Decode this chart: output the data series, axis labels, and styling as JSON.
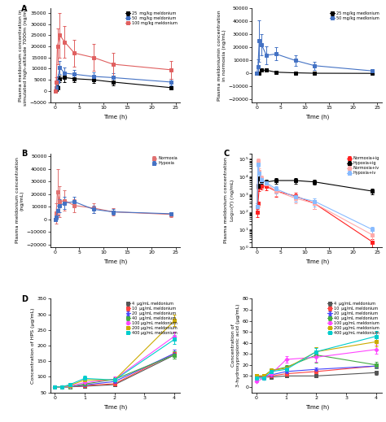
{
  "panel_A": {
    "ylabel": "Plasma meldonium concentration in\nsimulated high-altitude 7000m (ng/mL)",
    "xlabel": "Time (h)",
    "time": [
      0,
      0.25,
      0.5,
      1,
      2,
      4,
      8,
      12,
      24
    ],
    "series": [
      {
        "label": "25  mg/kg meldonium",
        "color": "black",
        "marker": "s",
        "y": [
          0,
          500,
          1500,
          5500,
          6000,
          5500,
          5000,
          4000,
          1500
        ],
        "yerr": [
          0,
          400,
          600,
          1500,
          2000,
          1500,
          1500,
          1500,
          800
        ]
      },
      {
        "label": "50  mg/kg meldonium",
        "color": "#4472C4",
        "marker": "s",
        "y": [
          0,
          1500,
          4500,
          10500,
          8000,
          7500,
          6500,
          6000,
          4000
        ],
        "yerr": [
          0,
          800,
          2000,
          3000,
          2500,
          2000,
          2000,
          2000,
          1500
        ]
      },
      {
        "label": "100 mg/kg meldonium",
        "color": "#E06060",
        "marker": "s",
        "y": [
          0,
          4000,
          20000,
          25000,
          22000,
          17000,
          15000,
          12000,
          9500
        ],
        "yerr": [
          0,
          2000,
          8000,
          10000,
          7000,
          6000,
          6000,
          5000,
          4000
        ]
      }
    ],
    "ylim": [
      -5000,
      37000
    ],
    "yticks": [
      -5000,
      0,
      5000,
      10000,
      15000,
      20000,
      25000,
      30000,
      35000
    ],
    "xlim": [
      -1,
      26
    ],
    "xticks": [
      0,
      5,
      10,
      15,
      20,
      25
    ]
  },
  "panel_A2": {
    "ylabel": "Plasma meldoniumin concentration\nin normoxia (ng/mL)",
    "xlabel": "Time (h)",
    "time": [
      0,
      0.25,
      0.5,
      1,
      2,
      4,
      8,
      12,
      24
    ],
    "series": [
      {
        "label": "25 mg/kg medlonium",
        "color": "black",
        "marker": "s",
        "y": [
          0,
          200,
          500,
          2500,
          2500,
          1000,
          500,
          200,
          100
        ],
        "yerr": [
          0,
          200,
          300,
          800,
          1000,
          500,
          300,
          200,
          100
        ]
      },
      {
        "label": "50 mg/kg medlonium",
        "color": "#4472C4",
        "marker": "s",
        "y": [
          0,
          5000,
          25000,
          22000,
          14000,
          15000,
          10000,
          6000,
          2000
        ],
        "yerr": [
          0,
          6000,
          16000,
          8000,
          7000,
          5000,
          4000,
          3000,
          1000
        ]
      }
    ],
    "ylim": [
      -22000,
      50000
    ],
    "yticks": [
      -20000,
      -10000,
      0,
      10000,
      20000,
      30000,
      40000,
      50000
    ],
    "xlim": [
      -1,
      26
    ],
    "xticks": [
      0,
      5,
      10,
      15,
      20,
      25
    ]
  },
  "panel_B": {
    "ylabel": "Plasma meldonium concentration\n(ng/mL)",
    "xlabel": "Time (h)",
    "time": [
      0,
      0.25,
      0.5,
      1,
      2,
      4,
      8,
      12,
      24
    ],
    "series": [
      {
        "label": "Normoxia",
        "color": "#E07070",
        "marker": "s",
        "y": [
          0,
          5000,
          22000,
          14000,
          15000,
          11000,
          9000,
          6000,
          4000
        ],
        "yerr": [
          0,
          8000,
          18000,
          12000,
          8000,
          5000,
          4000,
          3000,
          2000
        ]
      },
      {
        "label": "Hypoxia",
        "color": "#4472C4",
        "marker": "s",
        "y": [
          0,
          2000,
          7000,
          11000,
          13000,
          14000,
          8000,
          6000,
          4500
        ],
        "yerr": [
          0,
          2000,
          4000,
          5000,
          5000,
          4000,
          3000,
          2500,
          1500
        ]
      }
    ],
    "ylim": [
      -22000,
      52000
    ],
    "yticks": [
      -20000,
      -10000,
      0,
      10000,
      20000,
      30000,
      40000,
      50000
    ],
    "xlim": [
      -1,
      26
    ],
    "xticks": [
      0,
      5,
      10,
      15,
      20,
      25
    ]
  },
  "panel_C": {
    "ylabel": "Plasma meldonium concentration\nLog10(Y) (ng/mL)",
    "xlabel": "Time (h)",
    "time": [
      0.05,
      0.25,
      0.5,
      1,
      2,
      4,
      8,
      12,
      24
    ],
    "series": [
      {
        "label": "Normoxia+ig",
        "color": "#FF2020",
        "marker": "s",
        "y": [
          100,
          300,
          2500,
          3000,
          2800,
          1500,
          800,
          300,
          2
        ],
        "yerr": [
          50,
          100,
          1000,
          1200,
          1200,
          800,
          400,
          150,
          1
        ]
      },
      {
        "label": "Hypoxia+ig",
        "color": "#000000",
        "marker": "s",
        "y": [
          200,
          3000,
          8000,
          6000,
          5000,
          6000,
          6000,
          5000,
          1500
        ],
        "yerr": [
          100,
          1000,
          2000,
          2000,
          2000,
          2000,
          2000,
          1500,
          500
        ]
      },
      {
        "label": "Normoxia+iv",
        "color": "#FFAAAA",
        "marker": "s",
        "y": [
          200,
          80000,
          20000,
          8000,
          4000,
          1500,
          600,
          300,
          5
        ],
        "yerr": [
          100,
          20000,
          8000,
          3000,
          1500,
          700,
          300,
          150,
          3
        ]
      },
      {
        "label": "Hypoxia+iv",
        "color": "#88BBFF",
        "marker": "s",
        "y": [
          200,
          50000,
          15000,
          7000,
          4500,
          2000,
          700,
          400,
          10
        ],
        "yerr": [
          100,
          15000,
          5000,
          2500,
          1800,
          900,
          300,
          200,
          5
        ]
      }
    ],
    "ylim": [
      1,
      200000
    ],
    "xlim": [
      -1,
      26
    ],
    "xticks": [
      0,
      5,
      10,
      15,
      20,
      25
    ],
    "log_scale": true
  },
  "panel_D": {
    "ylabel": "Concentration of HPS (μg/mL)",
    "xlabel": "Time (h)",
    "time": [
      0,
      0.25,
      0.5,
      1,
      2,
      4
    ],
    "series": [
      {
        "label": "4  μg/mL meldonium",
        "color": "#555555",
        "marker": "s",
        "y": [
          68,
          68,
          68,
          70,
          75,
          170
        ],
        "yerr": [
          3,
          3,
          3,
          4,
          5,
          12
        ]
      },
      {
        "label": "10  μg/mL meldonium",
        "color": "#FF4444",
        "marker": "s",
        "y": [
          68,
          68,
          68,
          72,
          78,
          175
        ],
        "yerr": [
          3,
          3,
          3,
          4,
          5,
          12
        ]
      },
      {
        "label": "20  μg/mL meldonium",
        "color": "#4444FF",
        "marker": "^",
        "y": [
          68,
          68,
          68,
          74,
          85,
          175
        ],
        "yerr": [
          3,
          3,
          3,
          4,
          6,
          12
        ]
      },
      {
        "label": "40  μg/mL meldonium",
        "color": "#44AA44",
        "marker": "s",
        "y": [
          68,
          68,
          68,
          77,
          92,
          170
        ],
        "yerr": [
          3,
          3,
          3,
          5,
          7,
          12
        ]
      },
      {
        "label": "100 μg/mL meldonium",
        "color": "#FF44FF",
        "marker": "D",
        "y": [
          68,
          68,
          70,
          82,
          92,
          230
        ],
        "yerr": [
          3,
          3,
          4,
          6,
          8,
          15
        ]
      },
      {
        "label": "200 μg/mL meldonium",
        "color": "#CCAA00",
        "marker": "s",
        "y": [
          68,
          68,
          72,
          90,
          90,
          280
        ],
        "yerr": [
          3,
          3,
          4,
          7,
          7,
          18
        ]
      },
      {
        "label": "400 μg/mL meldonium",
        "color": "#00CCCC",
        "marker": "s",
        "y": [
          68,
          68,
          75,
          95,
          90,
          220
        ],
        "yerr": [
          3,
          3,
          5,
          8,
          7,
          15
        ]
      }
    ],
    "ylim": [
      50,
      350
    ],
    "yticks": [
      50,
      100,
      150,
      200,
      250,
      300,
      350
    ],
    "xlim": [
      -0.15,
      4.2
    ],
    "xticks": [
      0,
      1,
      2,
      3,
      4
    ]
  },
  "panel_E": {
    "ylabel": "Concentration of\n3-hydroxypropionic acid (μg/mL)",
    "xlabel": "Time (h)",
    "time": [
      0,
      0.25,
      0.5,
      1,
      2,
      4
    ],
    "series": [
      {
        "label": "4  μg/mL meldonium",
        "color": "#555555",
        "marker": "s",
        "y": [
          9,
          9,
          9,
          10,
          10,
          13
        ],
        "yerr": [
          1,
          1,
          1,
          1,
          1,
          2
        ]
      },
      {
        "label": "10  μg/mL meldonium",
        "color": "#FF4444",
        "marker": "s",
        "y": [
          9,
          9,
          10,
          12,
          14,
          19
        ],
        "yerr": [
          1,
          1,
          1,
          1,
          2,
          2
        ]
      },
      {
        "label": "20  μg/mL meldonium",
        "color": "#4444FF",
        "marker": "^",
        "y": [
          9,
          10,
          11,
          14,
          16,
          19
        ],
        "yerr": [
          1,
          1,
          1,
          1,
          2,
          2
        ]
      },
      {
        "label": "40  μg/mL meldonium",
        "color": "#44AA44",
        "marker": "s",
        "y": [
          10,
          10,
          15,
          18,
          29,
          20
        ],
        "yerr": [
          1,
          1,
          2,
          2,
          7,
          3
        ]
      },
      {
        "label": "100 μg/mL meldonium",
        "color": "#FF44FF",
        "marker": "D",
        "y": [
          5,
          8,
          12,
          25,
          27,
          34
        ],
        "yerr": [
          1,
          1,
          2,
          3,
          4,
          4
        ]
      },
      {
        "label": "200 μg/mL meldonium",
        "color": "#CCAA00",
        "marker": "s",
        "y": [
          10,
          10,
          15,
          17,
          32,
          41
        ],
        "yerr": [
          1,
          1,
          2,
          2,
          4,
          4
        ]
      },
      {
        "label": "400 μg/mL meldonium",
        "color": "#00CCCC",
        "marker": "s",
        "y": [
          8,
          8,
          14,
          16,
          32,
          46
        ],
        "yerr": [
          1,
          1,
          2,
          2,
          3,
          5
        ]
      }
    ],
    "ylim": [
      -5,
      80
    ],
    "yticks": [
      0,
      10,
      20,
      30,
      40,
      50,
      60,
      70,
      80
    ],
    "xlim": [
      -0.15,
      4.2
    ],
    "xticks": [
      0,
      1,
      2,
      3,
      4
    ]
  }
}
